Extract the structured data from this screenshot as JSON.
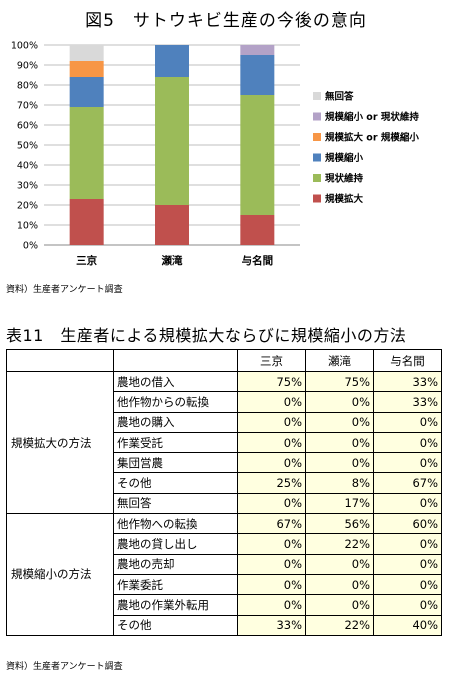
{
  "figure": {
    "title": "図5　サトウキビ生産の今後の意向",
    "source": "資料）生産者アンケート調査"
  },
  "chart_data": {
    "type": "bar",
    "stacked": true,
    "categories": [
      "三京",
      "瀬滝",
      "与名間"
    ],
    "series": [
      {
        "name": "規模拡大",
        "color": "#c0504d",
        "values": [
          23,
          20,
          15
        ]
      },
      {
        "name": "現状維持",
        "color": "#9bbb59",
        "values": [
          46,
          64,
          60
        ]
      },
      {
        "name": "規模縮小",
        "color": "#4f81bd",
        "values": [
          15,
          16,
          20
        ]
      },
      {
        "name": "規模拡大 or 規模縮小",
        "color": "#f79646",
        "values": [
          8,
          0,
          0
        ]
      },
      {
        "name": "規模縮小 or 現状維持",
        "color": "#b3a2c7",
        "values": [
          0,
          0,
          5
        ]
      },
      {
        "name": "無回答",
        "color": "#d9d9d9",
        "values": [
          8,
          0,
          0
        ]
      }
    ],
    "yticks": [
      "0%",
      "10%",
      "20%",
      "30%",
      "40%",
      "50%",
      "60%",
      "70%",
      "80%",
      "90%",
      "100%"
    ],
    "ylim": [
      0,
      100
    ],
    "grid": true,
    "legend_position": "right"
  },
  "table": {
    "title": "表11　生産者による規模拡大ならびに規模縮小の方法",
    "columns": [
      "三京",
      "瀬滝",
      "与名間"
    ],
    "groups": [
      {
        "label": "規模拡大の方法",
        "rows": [
          {
            "item": "農地の借入",
            "values": [
              "75%",
              "75%",
              "33%"
            ]
          },
          {
            "item": "他作物からの転換",
            "values": [
              "0%",
              "0%",
              "33%"
            ]
          },
          {
            "item": "農地の購入",
            "values": [
              "0%",
              "0%",
              "0%"
            ]
          },
          {
            "item": "作業受託",
            "values": [
              "0%",
              "0%",
              "0%"
            ]
          },
          {
            "item": "集団営農",
            "values": [
              "0%",
              "0%",
              "0%"
            ]
          },
          {
            "item": "その他",
            "values": [
              "25%",
              "8%",
              "67%"
            ]
          },
          {
            "item": "無回答",
            "values": [
              "0%",
              "17%",
              "0%"
            ]
          }
        ]
      },
      {
        "label": "規模縮小の方法",
        "rows": [
          {
            "item": "他作物への転換",
            "values": [
              "67%",
              "56%",
              "60%"
            ]
          },
          {
            "item": "農地の貸し出し",
            "values": [
              "0%",
              "22%",
              "0%"
            ]
          },
          {
            "item": "農地の売却",
            "values": [
              "0%",
              "0%",
              "0%"
            ]
          },
          {
            "item": "作業委託",
            "values": [
              "0%",
              "0%",
              "0%"
            ]
          },
          {
            "item": "農地の作業外転用",
            "values": [
              "0%",
              "0%",
              "0%"
            ]
          },
          {
            "item": "その他",
            "values": [
              "33%",
              "22%",
              "40%"
            ]
          }
        ]
      }
    ],
    "source": "資料）生産者アンケート調査"
  }
}
